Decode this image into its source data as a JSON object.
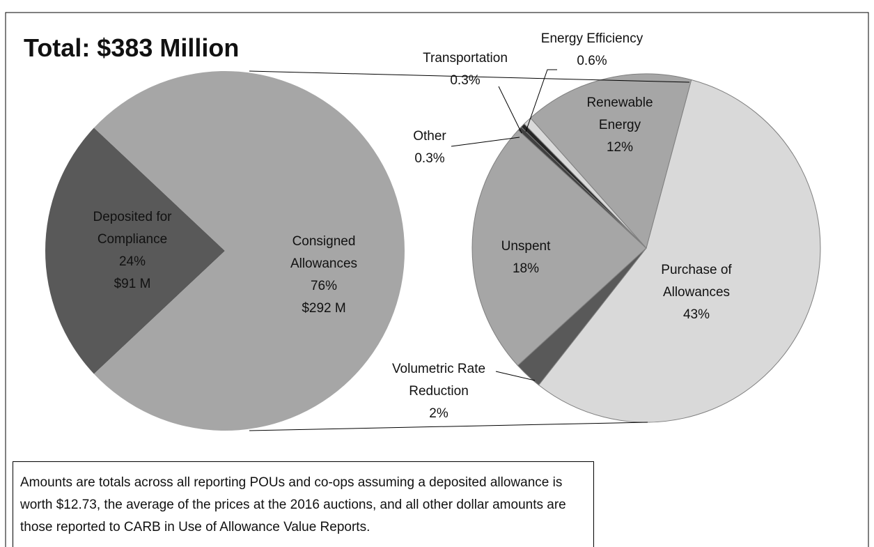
{
  "chart_data": [
    {
      "type": "pie",
      "title": "Total: $383 Million",
      "categories": [
        "Deposited for Compliance",
        "Consigned Allowances"
      ],
      "values": [
        24,
        76
      ],
      "value_labels": [
        "24%",
        "76%"
      ],
      "amounts": [
        91,
        292
      ],
      "amount_labels": [
        "$91 M",
        "$292 M"
      ],
      "colors": [
        "#595959",
        "#a6a6a6"
      ]
    },
    {
      "type": "pie",
      "categories": [
        "Purchase of Allowances",
        "Volumetric Rate Reduction",
        "Unspent",
        "Other",
        "Transportation",
        "Energy Efficiency",
        "Renewable Energy"
      ],
      "values": [
        43,
        2,
        18,
        0.3,
        0.3,
        0.6,
        12
      ],
      "value_labels": [
        "43%",
        "2%",
        "18%",
        "0.3%",
        "0.3%",
        "0.6%",
        "12%"
      ],
      "colors": [
        "#d9d9d9",
        "#595959",
        "#a6a6a6",
        "#404040",
        "#262626",
        "#d9d9d9",
        "#a6a6a6"
      ]
    }
  ],
  "note": "Amounts are totals across all reporting POUs and co-ops assuming a deposited allowance is worth $12.73, the average of the prices at the 2016 auctions, and all other dollar amounts are those reported to CARB in Use of Allowance Value Reports."
}
